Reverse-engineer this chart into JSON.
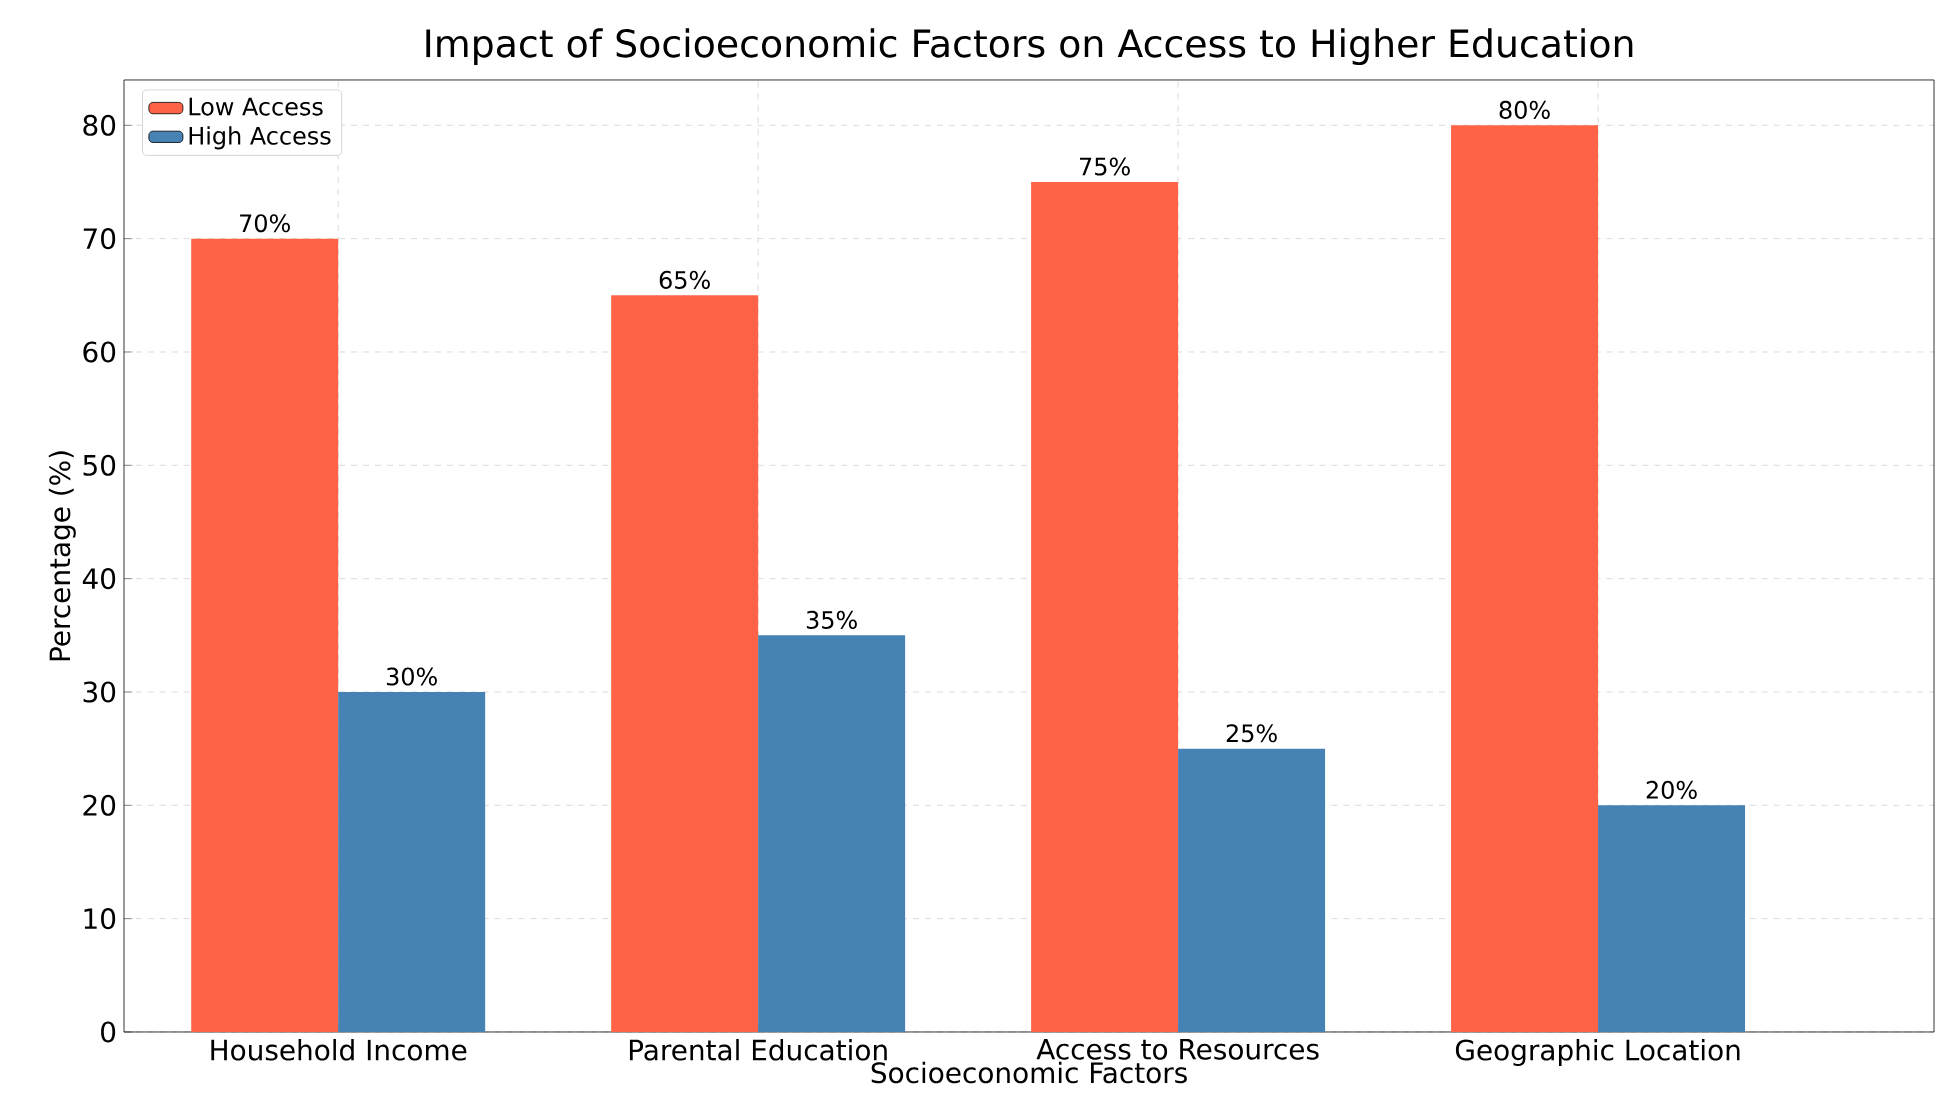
{
  "chart_data": {
    "type": "bar",
    "title": "Impact of Socioeconomic Factors on Access to Higher Education",
    "xlabel": "Socioeconomic Factors",
    "ylabel": "Percentage (%)",
    "categories": [
      "Household Income",
      "Parental Education",
      "Access to Resources",
      "Geographic Location"
    ],
    "series": [
      {
        "name": "Low Access",
        "color": "#ff6347",
        "values": [
          70,
          65,
          75,
          80
        ],
        "value_labels": [
          "70%",
          "65%",
          "75%",
          "80%"
        ]
      },
      {
        "name": "High Access",
        "color": "#4682b4",
        "values": [
          30,
          35,
          25,
          20
        ],
        "value_labels": [
          "30%",
          "35%",
          "25%",
          "20%"
        ]
      }
    ],
    "ylim": [
      0,
      84
    ],
    "yticks": [
      0,
      10,
      20,
      30,
      40,
      50,
      60,
      70,
      80
    ],
    "grid": true,
    "legend": "top left"
  }
}
